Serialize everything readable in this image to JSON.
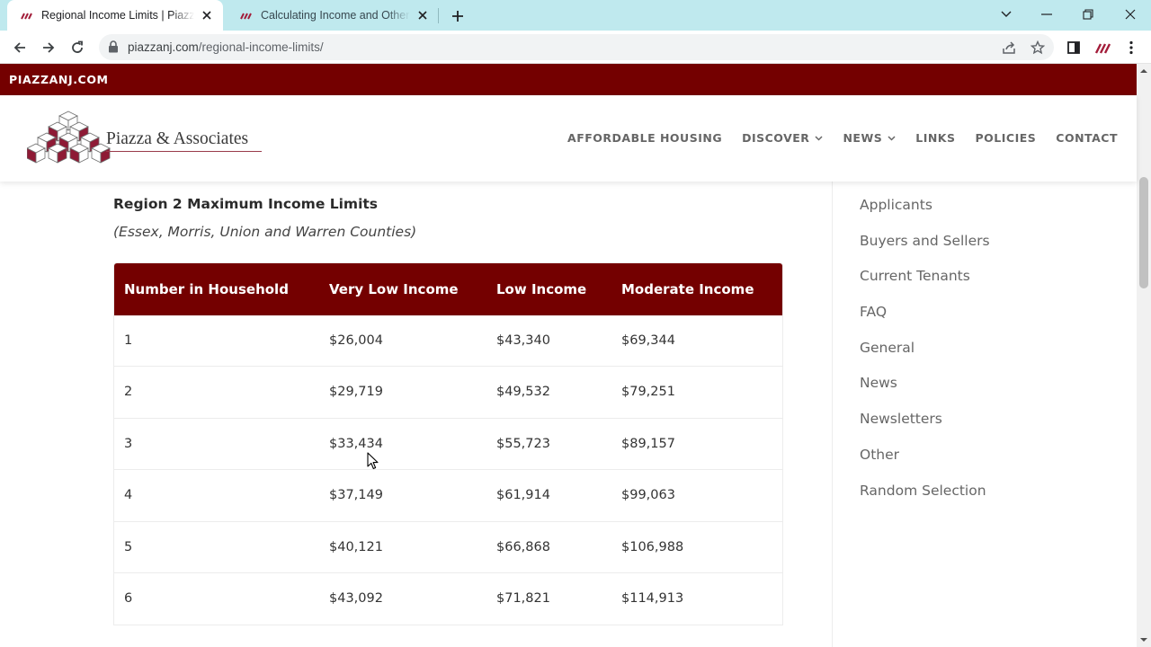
{
  "browser": {
    "tabs": [
      {
        "title": "Regional Income Limits | Piazza & Associates",
        "active": true
      },
      {
        "title": "Calculating Income and Other Policies",
        "active": false
      }
    ],
    "url_domain": "piazzanj.com",
    "url_path": "/regional-income-limits/"
  },
  "site": {
    "topbar_brand": "PIAZZANJ.COM",
    "logo_text": "Piazza & Associates",
    "nav": [
      {
        "label": "AFFORDABLE HOUSING",
        "has_dropdown": false
      },
      {
        "label": "DISCOVER",
        "has_dropdown": true
      },
      {
        "label": "NEWS",
        "has_dropdown": true
      },
      {
        "label": "LINKS",
        "has_dropdown": false
      },
      {
        "label": "POLICIES",
        "has_dropdown": false
      },
      {
        "label": "CONTACT",
        "has_dropdown": false
      }
    ],
    "brand_color": "#740000"
  },
  "content": {
    "region_title": "Region 2 Maximum Income Limits",
    "region_subtitle": "(Essex, Morris, Union and Warren Counties)",
    "table": {
      "headers": [
        "Number in Household",
        "Very Low Income",
        "Low Income",
        "Moderate Income"
      ],
      "rows": [
        [
          "1",
          "$26,004",
          "$43,340",
          "$69,344"
        ],
        [
          "2",
          "$29,719",
          "$49,532",
          "$79,251"
        ],
        [
          "3",
          "$33,434",
          "$55,723",
          "$89,157"
        ],
        [
          "4",
          "$37,149",
          "$61,914",
          "$99,063"
        ],
        [
          "5",
          "$40,121",
          "$66,868",
          "$106,988"
        ],
        [
          "6",
          "$43,092",
          "$71,821",
          "$114,913"
        ]
      ]
    }
  },
  "sidebar": {
    "categories": [
      "Applicants",
      "Buyers and Sellers",
      "Current Tenants",
      "FAQ",
      "General",
      "News",
      "Newsletters",
      "Other",
      "Random Selection"
    ]
  }
}
